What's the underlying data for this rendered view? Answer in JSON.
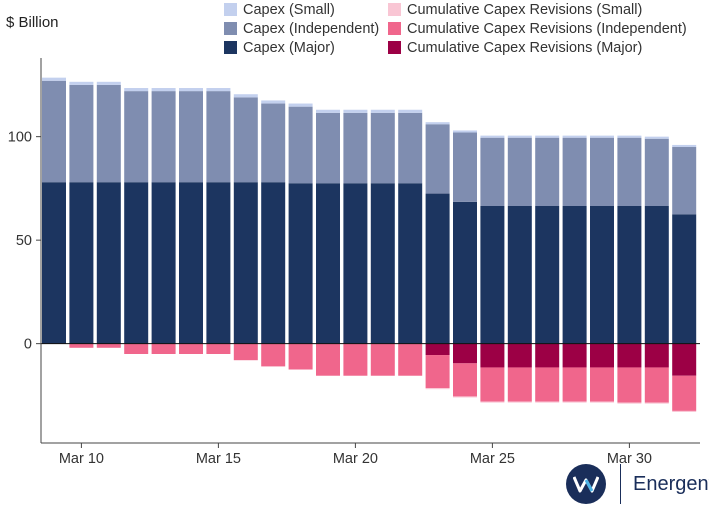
{
  "chart_data": {
    "type": "bar",
    "stacked": true,
    "ylabel": "$ Billion",
    "ylim": [
      -48,
      138
    ],
    "yticks": [
      0,
      50,
      100
    ],
    "categories": [
      "Mar 9",
      "Mar 10",
      "Mar 11",
      "Mar 12",
      "Mar 13",
      "Mar 14",
      "Mar 15",
      "Mar 16",
      "Mar 17",
      "Mar 18",
      "Mar 19",
      "Mar 20",
      "Mar 21",
      "Mar 22",
      "Mar 23",
      "Mar 24",
      "Mar 25",
      "Mar 26",
      "Mar 27",
      "Mar 28",
      "Mar 29",
      "Mar 30",
      "Mar 31",
      "Apr 1"
    ],
    "xticks": [
      {
        "index": 1,
        "label": "Mar 10"
      },
      {
        "index": 6,
        "label": "Mar 15"
      },
      {
        "index": 11,
        "label": "Mar 20"
      },
      {
        "index": 16,
        "label": "Mar 25"
      },
      {
        "index": 21,
        "label": "Mar 30"
      }
    ],
    "series": [
      {
        "name": "Capex (Major)",
        "color": "#1c3560",
        "values": [
          78,
          78,
          78,
          78,
          78,
          78,
          78,
          78,
          78,
          77.5,
          77.5,
          77.5,
          77.5,
          77.5,
          72.5,
          68.5,
          66.5,
          66.5,
          66.5,
          66.5,
          66.5,
          66.5,
          66.5,
          62.5
        ]
      },
      {
        "name": "Capex (Independent)",
        "color": "#7f8db0",
        "values": [
          49,
          47,
          47,
          44,
          44,
          44,
          44,
          41,
          38,
          37,
          34,
          34,
          34,
          34,
          33.5,
          33.5,
          33,
          33,
          33,
          33,
          33,
          33,
          32.5,
          32.5
        ]
      },
      {
        "name": "Capex (Small)",
        "color": "#c3d0ee",
        "values": [
          1.5,
          1.5,
          1.5,
          1.5,
          1.5,
          1.5,
          1.5,
          1.5,
          1.5,
          1.5,
          1.5,
          1.5,
          1.5,
          1.5,
          1,
          1,
          1,
          1,
          1,
          1,
          1,
          1,
          1,
          1
        ]
      },
      {
        "name": "Cumulative Capex Revisions (Major)",
        "color": "#9c0045",
        "values": [
          0,
          0,
          0,
          0,
          0,
          0,
          0,
          0,
          0,
          0,
          0,
          0,
          0,
          0,
          -5.5,
          -9.5,
          -11.5,
          -11.5,
          -11.5,
          -11.5,
          -11.5,
          -11.5,
          -11.5,
          -15.5
        ]
      },
      {
        "name": "Cumulative Capex Revisions (Independent)",
        "color": "#f0668c",
        "values": [
          0,
          -2,
          -2,
          -5,
          -5,
          -5,
          -5,
          -8,
          -11,
          -12.5,
          -15.5,
          -15.5,
          -15.5,
          -15.5,
          -16,
          -16,
          -16.5,
          -16.5,
          -16.5,
          -16.5,
          -16.5,
          -17,
          -17,
          -17
        ]
      },
      {
        "name": "Cumulative Capex Revisions (Small)",
        "color": "#f9c6d4",
        "values": [
          0,
          0,
          0,
          0,
          0,
          0,
          0,
          0,
          0,
          0,
          0,
          0,
          0,
          0,
          -0.5,
          -0.5,
          -0.5,
          -0.5,
          -0.5,
          -0.5,
          -0.5,
          -0.5,
          -0.5,
          -0.5
        ]
      }
    ],
    "grid": false,
    "legend": "top"
  },
  "legend": {
    "left": [
      {
        "label": "Capex (Small)",
        "color": "#c3d0ee"
      },
      {
        "label": "Capex (Independent)",
        "color": "#7f8db0"
      },
      {
        "label": "Capex (Major)",
        "color": "#1c3560"
      }
    ],
    "right": [
      {
        "label": "Cumulative Capex Revisions (Small)",
        "color": "#f9c6d4"
      },
      {
        "label": "Cumulative Capex Revisions (Independent)",
        "color": "#f0668c"
      },
      {
        "label": "Cumulative Capex Revisions (Major)",
        "color": "#9c0045"
      }
    ]
  },
  "brand": {
    "name": "Energent",
    "color": "#1a2e5a"
  }
}
